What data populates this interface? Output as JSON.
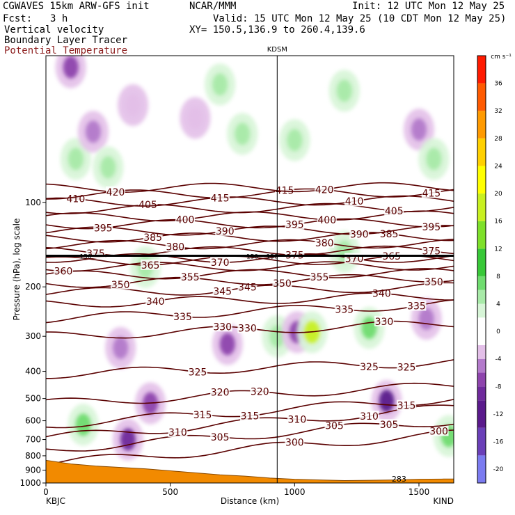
{
  "header": {
    "model": "CGWAVES 15km ARW-GFS init",
    "org": "NCAR/MMM",
    "init": "Init: 12 UTC Mon 12 May 25",
    "fcst_label": "Fcst:",
    "fcst_value": "3 h",
    "valid": "Valid: 15 UTC Mon 12 May 25 (10 CDT Mon 12 May 25)",
    "field1": "Vertical velocity",
    "field2": "Boundary Layer Tracer",
    "field3": "Potential Temperature",
    "xy": "XY= 150.5,136.9 to 260.4,139.6"
  },
  "colors": {
    "theta": "#5a0000",
    "terrain": "#f28a00",
    "header_red": "#8b1a1a"
  },
  "chart_data": {
    "type": "heatmap",
    "title": "",
    "xlabel": "Distance (km)",
    "ylabel": "Pressure (hPa), log scale",
    "xlim": [
      0,
      1640
    ],
    "ylim": [
      1000,
      30
    ],
    "y_scale": "log",
    "x_ticks": [
      0,
      500,
      1000,
      1500
    ],
    "x_tick_labels": [
      "0",
      "500",
      "1000",
      "1500"
    ],
    "y_ticks": [
      100,
      200,
      300,
      400,
      500,
      600,
      700,
      800,
      900,
      1000
    ],
    "y_tick_labels": [
      "100",
      "200",
      "300",
      "400",
      "500",
      "600",
      "700",
      "800",
      "900",
      "1000"
    ],
    "start_label": "KBJC",
    "end_label": "KIND",
    "marker": {
      "label": "KDSM",
      "x": 930
    },
    "colorbar": {
      "units": "cm s⁻¹",
      "ticks": [
        -20,
        -16,
        -12,
        -8,
        -4,
        0,
        4,
        8,
        12,
        16,
        20,
        24,
        28,
        32,
        36
      ],
      "tick_labels": [
        "-20",
        "-16",
        "-12",
        "-8",
        "-4",
        "0",
        "4",
        "8",
        "12",
        "16",
        "20",
        "24",
        "28",
        "32",
        "36"
      ],
      "bins": [
        {
          "lo": -22,
          "hi": -18,
          "color": "#7b7bf0"
        },
        {
          "lo": -18,
          "hi": -14,
          "color": "#6a3fb8"
        },
        {
          "lo": -14,
          "hi": -10,
          "color": "#5a1a8c"
        },
        {
          "lo": -10,
          "hi": -8,
          "color": "#6f2a9c"
        },
        {
          "lo": -8,
          "hi": -6,
          "color": "#8e44ad"
        },
        {
          "lo": -6,
          "hi": -4,
          "color": "#b37acb"
        },
        {
          "lo": -4,
          "hi": -2,
          "color": "#e3bfe8"
        },
        {
          "lo": -2,
          "hi": 2,
          "color": "#ffffff"
        },
        {
          "lo": 2,
          "hi": 4,
          "color": "#d7f5d7"
        },
        {
          "lo": 4,
          "hi": 6,
          "color": "#a8eaa8"
        },
        {
          "lo": 6,
          "hi": 8,
          "color": "#6fdc6f"
        },
        {
          "lo": 8,
          "hi": 12,
          "color": "#38c838"
        },
        {
          "lo": 12,
          "hi": 16,
          "color": "#7ee02a"
        },
        {
          "lo": 16,
          "hi": 20,
          "color": "#c8f020"
        },
        {
          "lo": 20,
          "hi": 24,
          "color": "#ffff00"
        },
        {
          "lo": 24,
          "hi": 28,
          "color": "#ffd000"
        },
        {
          "lo": 28,
          "hi": 32,
          "color": "#ff9a00"
        },
        {
          "lo": 32,
          "hi": 36,
          "color": "#ff5a00"
        },
        {
          "lo": 36,
          "hi": 40,
          "color": "#ff1a00"
        }
      ]
    },
    "w_features": [
      {
        "x": 100,
        "p": 33,
        "val": -8
      },
      {
        "x": 120,
        "p": 70,
        "val": 4
      },
      {
        "x": 190,
        "p": 56,
        "val": -6
      },
      {
        "x": 250,
        "p": 75,
        "val": 4
      },
      {
        "x": 350,
        "p": 45,
        "val": -4
      },
      {
        "x": 600,
        "p": 50,
        "val": -4
      },
      {
        "x": 700,
        "p": 38,
        "val": 4
      },
      {
        "x": 790,
        "p": 57,
        "val": 4
      },
      {
        "x": 1000,
        "p": 60,
        "val": 4
      },
      {
        "x": 1200,
        "p": 40,
        "val": 4
      },
      {
        "x": 1500,
        "p": 55,
        "val": -6
      },
      {
        "x": 1560,
        "p": 70,
        "val": 4
      },
      {
        "x": 400,
        "p": 170,
        "val": 4
      },
      {
        "x": 300,
        "p": 330,
        "val": -6
      },
      {
        "x": 420,
        "p": 520,
        "val": -8
      },
      {
        "x": 330,
        "p": 700,
        "val": -10
      },
      {
        "x": 150,
        "p": 620,
        "val": 6
      },
      {
        "x": 730,
        "p": 320,
        "val": -8
      },
      {
        "x": 930,
        "p": 300,
        "val": 4
      },
      {
        "x": 1010,
        "p": 290,
        "val": -8
      },
      {
        "x": 1070,
        "p": 290,
        "val": 16
      },
      {
        "x": 1300,
        "p": 280,
        "val": 6
      },
      {
        "x": 1370,
        "p": 510,
        "val": -12
      },
      {
        "x": 1530,
        "p": 260,
        "val": -6
      },
      {
        "x": 1620,
        "p": 680,
        "val": 6
      },
      {
        "x": 1200,
        "p": 150,
        "val": 4
      }
    ],
    "theta_lines": [
      {
        "theta": 300,
        "p_left": 850,
        "p_right": 670,
        "labels": [
          {
            "x": 1000,
            "text": "300"
          },
          {
            "x": 1580,
            "text": "300"
          }
        ]
      },
      {
        "theta": 305,
        "p_left": 760,
        "p_right": 600,
        "labels": [
          {
            "x": 700,
            "text": "305"
          },
          {
            "x": 1160,
            "text": "305"
          },
          {
            "x": 1380,
            "text": "305"
          }
        ]
      },
      {
        "theta": 310,
        "p_left": 690,
        "p_right": 540,
        "labels": [
          {
            "x": 530,
            "text": "310"
          },
          {
            "x": 1010,
            "text": "310"
          },
          {
            "x": 1300,
            "text": "310"
          }
        ]
      },
      {
        "theta": 315,
        "p_left": 620,
        "p_right": 500,
        "labels": [
          {
            "x": 630,
            "text": "315"
          },
          {
            "x": 820,
            "text": "315"
          },
          {
            "x": 1450,
            "text": "315"
          }
        ]
      },
      {
        "theta": 320,
        "p_left": 520,
        "p_right": 450,
        "labels": [
          {
            "x": 700,
            "text": "320"
          },
          {
            "x": 860,
            "text": "320"
          }
        ]
      },
      {
        "theta": 325,
        "p_left": 410,
        "p_right": 370,
        "labels": [
          {
            "x": 610,
            "text": "325"
          },
          {
            "x": 1300,
            "text": "325"
          },
          {
            "x": 1450,
            "text": "325"
          }
        ]
      },
      {
        "theta": 330,
        "p_left": 300,
        "p_right": 270,
        "labels": [
          {
            "x": 710,
            "text": "330"
          },
          {
            "x": 810,
            "text": "330"
          },
          {
            "x": 1360,
            "text": "330"
          }
        ]
      },
      {
        "theta": 335,
        "p_left": 260,
        "p_right": 230,
        "labels": [
          {
            "x": 550,
            "text": "335"
          },
          {
            "x": 1200,
            "text": "335"
          },
          {
            "x": 1490,
            "text": "335"
          }
        ]
      },
      {
        "theta": 340,
        "p_left": 230,
        "p_right": 215,
        "labels": [
          {
            "x": 440,
            "text": "340"
          },
          {
            "x": 1350,
            "text": "340"
          }
        ]
      },
      {
        "theta": 345,
        "p_left": 210,
        "p_right": 200,
        "labels": [
          {
            "x": 710,
            "text": "345"
          },
          {
            "x": 810,
            "text": "345"
          }
        ]
      },
      {
        "theta": 350,
        "p_left": 195,
        "p_right": 185,
        "labels": [
          {
            "x": 300,
            "text": "350"
          },
          {
            "x": 950,
            "text": "350"
          },
          {
            "x": 1560,
            "text": "350"
          }
        ]
      },
      {
        "theta": 355,
        "p_left": 182,
        "p_right": 178,
        "labels": [
          {
            "x": 580,
            "text": "355"
          },
          {
            "x": 1100,
            "text": "355"
          }
        ]
      },
      {
        "theta": 360,
        "p_left": 170,
        "p_right": 168,
        "labels": [
          {
            "x": 70,
            "text": "360"
          }
        ]
      },
      {
        "theta": 365,
        "p_left": 162,
        "p_right": 160,
        "labels": [
          {
            "x": 420,
            "text": "365"
          },
          {
            "x": 1390,
            "text": "365"
          }
        ]
      },
      {
        "theta": 370,
        "p_left": 158,
        "p_right": 158,
        "labels": [
          {
            "x": 700,
            "text": "370"
          },
          {
            "x": 1240,
            "text": "370"
          }
        ]
      },
      {
        "theta": 375,
        "p_left": 150,
        "p_right": 148,
        "labels": [
          {
            "x": 200,
            "text": "375"
          },
          {
            "x": 1000,
            "text": "375"
          },
          {
            "x": 1550,
            "text": "375"
          }
        ]
      },
      {
        "theta": 380,
        "p_left": 142,
        "p_right": 140,
        "labels": [
          {
            "x": 520,
            "text": "380"
          },
          {
            "x": 1120,
            "text": "380"
          }
        ]
      },
      {
        "theta": 385,
        "p_left": 134,
        "p_right": 132,
        "labels": [
          {
            "x": 430,
            "text": "385"
          },
          {
            "x": 1380,
            "text": "385"
          }
        ]
      },
      {
        "theta": 390,
        "p_left": 127,
        "p_right": 125,
        "labels": [
          {
            "x": 720,
            "text": "390"
          },
          {
            "x": 1260,
            "text": "390"
          }
        ]
      },
      {
        "theta": 395,
        "p_left": 120,
        "p_right": 118,
        "labels": [
          {
            "x": 230,
            "text": "395"
          },
          {
            "x": 1000,
            "text": "395"
          },
          {
            "x": 1550,
            "text": "395"
          }
        ]
      },
      {
        "theta": 400,
        "p_left": 113,
        "p_right": 111,
        "labels": [
          {
            "x": 560,
            "text": "400"
          },
          {
            "x": 1130,
            "text": "400"
          }
        ]
      },
      {
        "theta": 405,
        "p_left": 106,
        "p_right": 104,
        "labels": [
          {
            "x": 410,
            "text": "405"
          },
          {
            "x": 1400,
            "text": "405"
          }
        ]
      },
      {
        "theta": 410,
        "p_left": 100,
        "p_right": 98,
        "labels": [
          {
            "x": 120,
            "text": "410"
          },
          {
            "x": 1240,
            "text": "410"
          }
        ]
      },
      {
        "theta": 415,
        "p_left": 94,
        "p_right": 92,
        "labels": [
          {
            "x": 700,
            "text": "415"
          },
          {
            "x": 960,
            "text": "415"
          },
          {
            "x": 1550,
            "text": "415"
          }
        ]
      },
      {
        "theta": 420,
        "p_left": 89,
        "p_right": 88,
        "labels": [
          {
            "x": 280,
            "text": "420"
          },
          {
            "x": 1120,
            "text": "420"
          }
        ]
      }
    ],
    "tropopause": {
      "p": 155,
      "labels": [
        {
          "x": 160,
          "text": "150"
        },
        {
          "x": 830,
          "text": "150"
        },
        {
          "x": 910,
          "text": "150"
        }
      ]
    },
    "terrain": {
      "x": [
        0,
        100,
        200,
        300,
        400,
        500,
        600,
        700,
        800,
        900,
        1000,
        1100,
        1200,
        1300,
        1400,
        1500,
        1600,
        1640
      ],
      "p": [
        830,
        855,
        870,
        880,
        890,
        905,
        920,
        935,
        945,
        960,
        970,
        975,
        980,
        978,
        975,
        970,
        968,
        968
      ],
      "label": {
        "x": 1420,
        "text": "283"
      }
    }
  }
}
